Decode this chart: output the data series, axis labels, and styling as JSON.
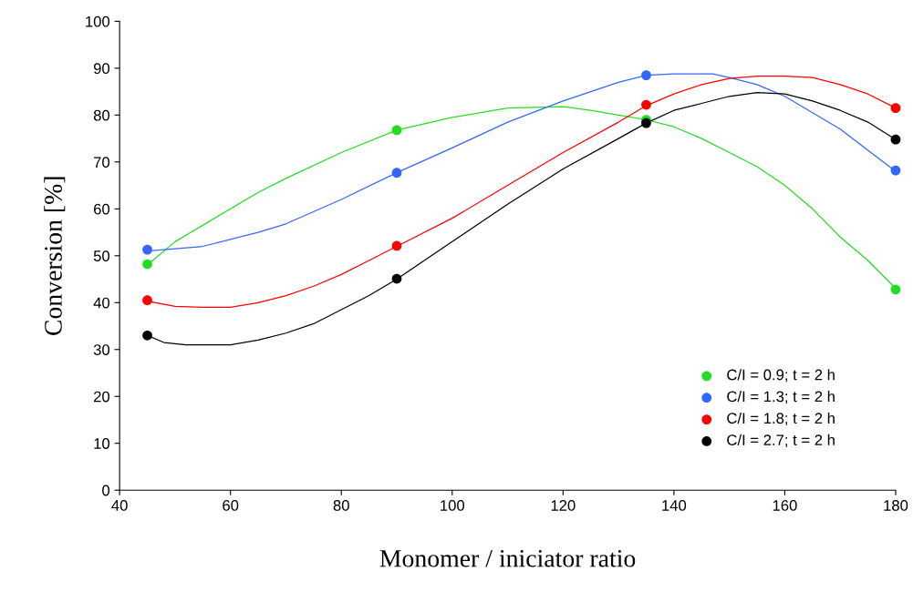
{
  "chart_data": {
    "type": "line",
    "xlabel": "Monomer / iniciator ratio",
    "ylabel": "Conversion [%]",
    "xlim": [
      40,
      180
    ],
    "xticks": [
      40,
      60,
      80,
      100,
      120,
      140,
      160,
      180
    ],
    "ylim": [
      0,
      100
    ],
    "yticks": [
      0,
      10,
      20,
      30,
      40,
      50,
      60,
      70,
      80,
      90,
      100
    ],
    "grid": false,
    "legend": "bottom right",
    "series": [
      {
        "marker": "none",
        "color": "#22dd22",
        "x": [
          45,
          50,
          55,
          60,
          65,
          70,
          80,
          90,
          100,
          110,
          120,
          125,
          130,
          135,
          140,
          145,
          150,
          155,
          160,
          165,
          170,
          175,
          180
        ],
        "values": [
          48,
          53,
          56.5,
          60,
          63.5,
          66.5,
          72,
          76.8,
          79.5,
          81.5,
          81.8,
          81,
          80,
          79,
          77.5,
          75,
          72,
          69,
          65,
          60,
          54,
          49,
          43
        ]
      },
      {
        "marker": "none",
        "color": "#3366ff",
        "x": [
          45,
          50,
          55,
          60,
          65,
          70,
          80,
          90,
          100,
          110,
          120,
          130,
          135,
          140,
          147,
          150,
          155,
          160,
          165,
          170,
          175,
          180
        ],
        "values": [
          51,
          51.5,
          52,
          53.5,
          55,
          56.8,
          62,
          67.7,
          73,
          78.5,
          83,
          87,
          88.5,
          88.8,
          88.8,
          88,
          86.5,
          84,
          80.5,
          77,
          72.5,
          68
        ]
      },
      {
        "marker": "none",
        "color": "#ff0000",
        "x": [
          45,
          50,
          55,
          60,
          65,
          70,
          75,
          80,
          85,
          90,
          100,
          110,
          120,
          130,
          135,
          140,
          145,
          150,
          155,
          160,
          165,
          170,
          175,
          180
        ],
        "values": [
          40.3,
          39.2,
          39,
          39,
          40,
          41.5,
          43.5,
          46,
          49,
          52,
          58,
          65,
          72,
          78.5,
          82,
          84.5,
          86.5,
          87.8,
          88.3,
          88.3,
          88,
          86.5,
          84.5,
          81.5
        ]
      },
      {
        "marker": "none",
        "color": "#000000",
        "x": [
          45,
          48,
          52,
          60,
          65,
          70,
          75,
          80,
          85,
          90,
          100,
          110,
          120,
          130,
          135,
          140,
          145,
          150,
          155,
          160,
          165,
          170,
          175,
          180
        ],
        "values": [
          33,
          31.5,
          31,
          31,
          32,
          33.5,
          35.5,
          38.5,
          41.5,
          45,
          53,
          61,
          68.5,
          75,
          78.3,
          81,
          82.5,
          84,
          84.8,
          84.5,
          83,
          81,
          78.5,
          74.8
        ]
      },
      {
        "type": "scatter",
        "marker": "circle",
        "name": "C/I = 0.9; t = 2 h",
        "color": "#22dd22",
        "x": [
          45,
          90,
          135,
          180
        ],
        "values": [
          48.2,
          76.8,
          79,
          42.8
        ]
      },
      {
        "type": "scatter",
        "marker": "circle",
        "name": "C/I = 1.3; t = 2 h",
        "color": "#3366ff",
        "x": [
          45,
          90,
          135,
          180
        ],
        "values": [
          51.3,
          67.7,
          88.5,
          68.2
        ]
      },
      {
        "type": "scatter",
        "marker": "circle",
        "name": "C/I = 1.8; t = 2 h",
        "color": "#ff0000",
        "x": [
          45,
          90,
          135,
          180
        ],
        "values": [
          40.5,
          52.1,
          82.2,
          81.5
        ]
      },
      {
        "type": "scatter",
        "marker": "circle",
        "name": "C/I = 2.7; t = 2 h",
        "color": "#000000",
        "x": [
          45,
          90,
          135,
          180
        ],
        "values": [
          33,
          45.1,
          78.3,
          74.8
        ]
      }
    ]
  }
}
